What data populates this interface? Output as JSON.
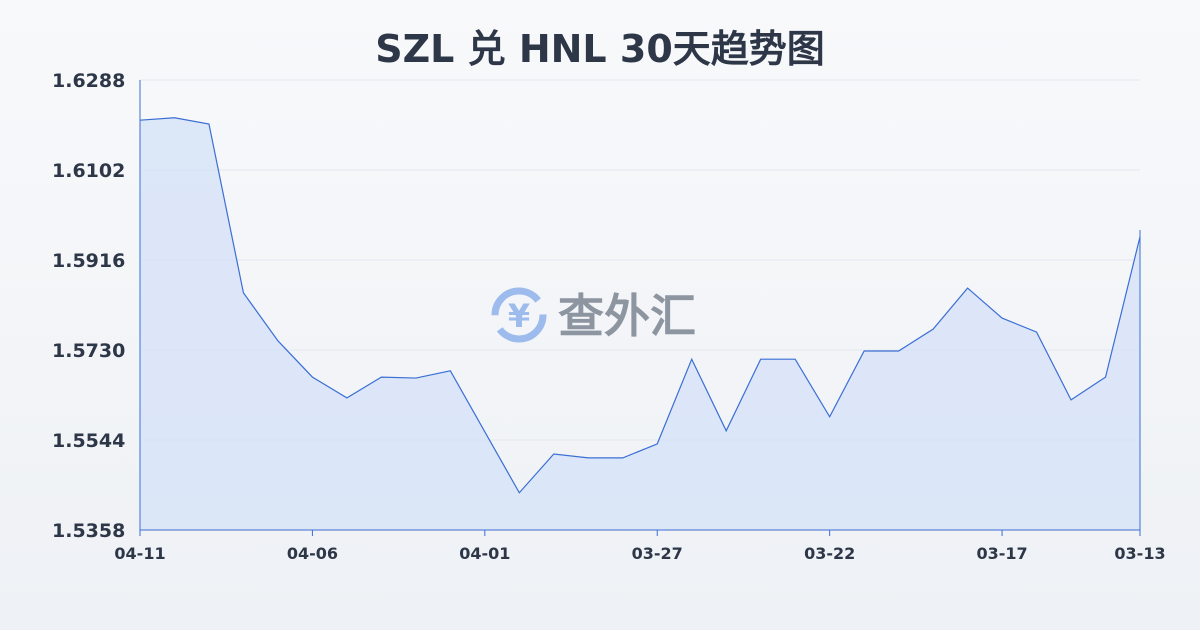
{
  "chart_data": {
    "type": "area",
    "title": "SZL 兑 HNL 30天趋势图",
    "xlabel": "",
    "ylabel": "",
    "ylim": [
      1.5358,
      1.6288
    ],
    "yticks": [
      "1.6288",
      "1.6102",
      "1.5916",
      "1.5730",
      "1.5544",
      "1.5358"
    ],
    "xticks": [
      "04-11",
      "04-06",
      "04-01",
      "03-27",
      "03-22",
      "03-17",
      "03-13"
    ],
    "grid": true,
    "x": [
      "04-11",
      "04-10",
      "04-09",
      "04-08",
      "04-07",
      "04-06",
      "04-05",
      "04-04",
      "04-03",
      "04-02",
      "04-01",
      "03-31",
      "03-30",
      "03-29",
      "03-28",
      "03-27",
      "03-26",
      "03-25",
      "03-24",
      "03-23",
      "03-22",
      "03-21",
      "03-20",
      "03-19",
      "03-18",
      "03-17",
      "03-16",
      "03-15",
      "03-14",
      "03-13"
    ],
    "values": [
      1.6205,
      1.621,
      1.6197,
      1.5848,
      1.5749,
      1.5674,
      1.5631,
      1.5674,
      1.5672,
      1.5687,
      1.5561,
      1.5435,
      1.5515,
      1.5507,
      1.5507,
      1.5536,
      1.5711,
      1.5563,
      1.5711,
      1.5711,
      1.5592,
      1.5728,
      1.5728,
      1.5773,
      1.5858,
      1.5796,
      1.5767,
      1.5627,
      1.5674,
      1.5964
    ],
    "line_color": "#3b6fd4",
    "fill_color": "#d6e2f7"
  },
  "watermark": {
    "text": "查外汇",
    "icon": "yen-exchange-icon",
    "color": "#8fb1ec"
  }
}
